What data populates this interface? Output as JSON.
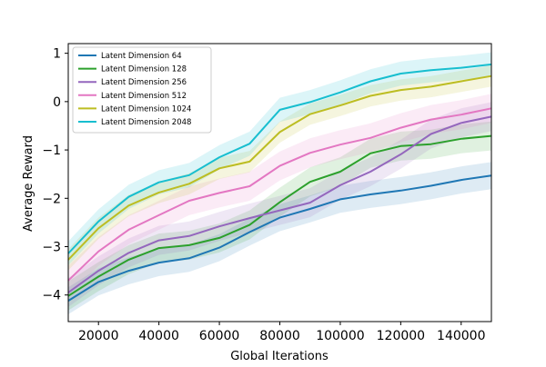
{
  "chart_data": {
    "type": "line",
    "title": "",
    "xlabel": "Global Iterations",
    "ylabel": "Average Reward",
    "xlim": [
      10000,
      150000
    ],
    "ylim": [
      -4.55,
      1.2
    ],
    "xticks": [
      20000,
      40000,
      60000,
      80000,
      100000,
      120000,
      140000
    ],
    "xtick_labels": [
      "20000",
      "40000",
      "60000",
      "80000",
      "100000",
      "120000",
      "140000"
    ],
    "yticks": [
      1,
      0,
      -1,
      -2,
      -3,
      -4
    ],
    "ytick_labels": [
      "1",
      "0",
      "−1",
      "−2",
      "−3",
      "−4"
    ],
    "grid": false,
    "legend_position": "upper-left",
    "shaded_band": "uncertainty",
    "x": [
      10000,
      20000,
      30000,
      40000,
      50000,
      60000,
      70000,
      80000,
      90000,
      100000,
      110000,
      120000,
      130000,
      140000,
      150000
    ],
    "series": [
      {
        "name": "Latent Dimension 64",
        "color": "#1f77b4",
        "values": [
          -4.12,
          -3.73,
          -3.5,
          -3.33,
          -3.24,
          -3.02,
          -2.7,
          -2.4,
          -2.22,
          -2.02,
          -1.92,
          -1.84,
          -1.74,
          -1.62,
          -1.53
        ],
        "band": 0.28
      },
      {
        "name": "Latent Dimension 128",
        "color": "#2ca02c",
        "values": [
          -4.02,
          -3.62,
          -3.27,
          -3.03,
          -2.97,
          -2.82,
          -2.55,
          -2.08,
          -1.66,
          -1.45,
          -1.07,
          -0.92,
          -0.88,
          -0.77,
          -0.71
        ],
        "band": 0.3
      },
      {
        "name": "Latent Dimension 256",
        "color": "#9467bd",
        "values": [
          -3.95,
          -3.5,
          -3.13,
          -2.87,
          -2.78,
          -2.58,
          -2.41,
          -2.25,
          -2.09,
          -1.73,
          -1.45,
          -1.09,
          -0.67,
          -0.44,
          -0.31
        ],
        "band": 0.3
      },
      {
        "name": "Latent Dimension 512",
        "color": "#e377c2",
        "values": [
          -3.7,
          -3.1,
          -2.65,
          -2.35,
          -2.05,
          -1.89,
          -1.75,
          -1.33,
          -1.06,
          -0.89,
          -0.75,
          -0.54,
          -0.37,
          -0.27,
          -0.14
        ],
        "band": 0.3
      },
      {
        "name": "Latent Dimension 1024",
        "color": "#bcbd22",
        "values": [
          -3.27,
          -2.62,
          -2.15,
          -1.88,
          -1.7,
          -1.38,
          -1.24,
          -0.63,
          -0.26,
          -0.08,
          0.12,
          0.24,
          0.31,
          0.42,
          0.53
        ],
        "band": 0.22
      },
      {
        "name": "Latent Dimension 2048",
        "color": "#17becf",
        "values": [
          -3.14,
          -2.48,
          -1.97,
          -1.67,
          -1.52,
          -1.15,
          -0.87,
          -0.17,
          -0.01,
          0.19,
          0.42,
          0.58,
          0.65,
          0.7,
          0.77
        ],
        "band": 0.25
      }
    ]
  }
}
